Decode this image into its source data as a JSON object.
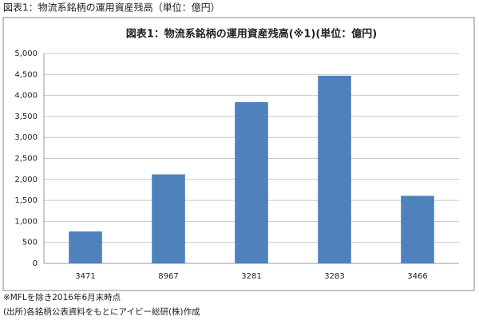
{
  "caption": "図表1：物流系銘柄の運用資産残高（単位：億円）",
  "chart_data": {
    "type": "bar",
    "title": "図表1：物流系銘柄の運用資産残高(※1)(単位：億円)",
    "categories": [
      "3471",
      "8967",
      "3281",
      "3283",
      "3466"
    ],
    "values": [
      760,
      2120,
      3840,
      4470,
      1610
    ],
    "color": "#4f81bd",
    "ylim": [
      0,
      5000
    ],
    "yticks": [
      0,
      500,
      {
        "value": 1000,
        "label": "1,000"
      },
      {
        "value": 1500,
        "label": "1,500"
      },
      {
        "value": 2000,
        "label": "2,000"
      },
      {
        "value": 2500,
        "label": "2,500"
      },
      {
        "value": 3000,
        "label": "3,000"
      },
      {
        "value": 3500,
        "label": "3,500"
      },
      {
        "value": 4000,
        "label": "4,000"
      },
      {
        "value": 4500,
        "label": "4,500"
      },
      {
        "value": 5000,
        "label": "5,000"
      }
    ],
    "grid": true
  },
  "notes": [
    "※MFLを除き2016年6月末時点",
    "(出所)各銘柄公表資料をもとにアイビー総研(株)作成"
  ]
}
